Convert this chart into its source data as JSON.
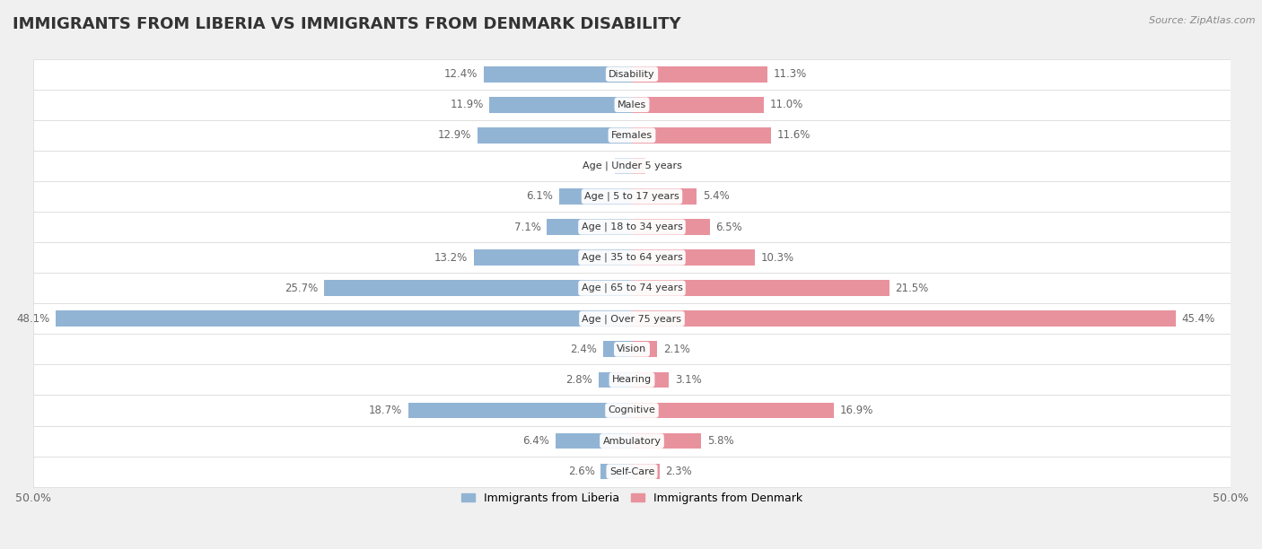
{
  "title": "IMMIGRANTS FROM LIBERIA VS IMMIGRANTS FROM DENMARK DISABILITY",
  "source": "Source: ZipAtlas.com",
  "categories": [
    "Disability",
    "Males",
    "Females",
    "Age | Under 5 years",
    "Age | 5 to 17 years",
    "Age | 18 to 34 years",
    "Age | 35 to 64 years",
    "Age | 65 to 74 years",
    "Age | Over 75 years",
    "Vision",
    "Hearing",
    "Cognitive",
    "Ambulatory",
    "Self-Care"
  ],
  "liberia_values": [
    12.4,
    11.9,
    12.9,
    1.4,
    6.1,
    7.1,
    13.2,
    25.7,
    48.1,
    2.4,
    2.8,
    18.7,
    6.4,
    2.6
  ],
  "denmark_values": [
    11.3,
    11.0,
    11.6,
    1.1,
    5.4,
    6.5,
    10.3,
    21.5,
    45.4,
    2.1,
    3.1,
    16.9,
    5.8,
    2.3
  ],
  "liberia_color": "#92b4d4",
  "denmark_color": "#e8929e",
  "axis_limit": 50.0,
  "bg_color": "#f0f0f0",
  "row_bg_color": "#ffffff",
  "row_border_color": "#d8d8d8",
  "label_color": "#666666",
  "title_fontsize": 13,
  "tick_fontsize": 9,
  "bar_height": 0.52,
  "legend_labels": [
    "Immigrants from Liberia",
    "Immigrants from Denmark"
  ]
}
